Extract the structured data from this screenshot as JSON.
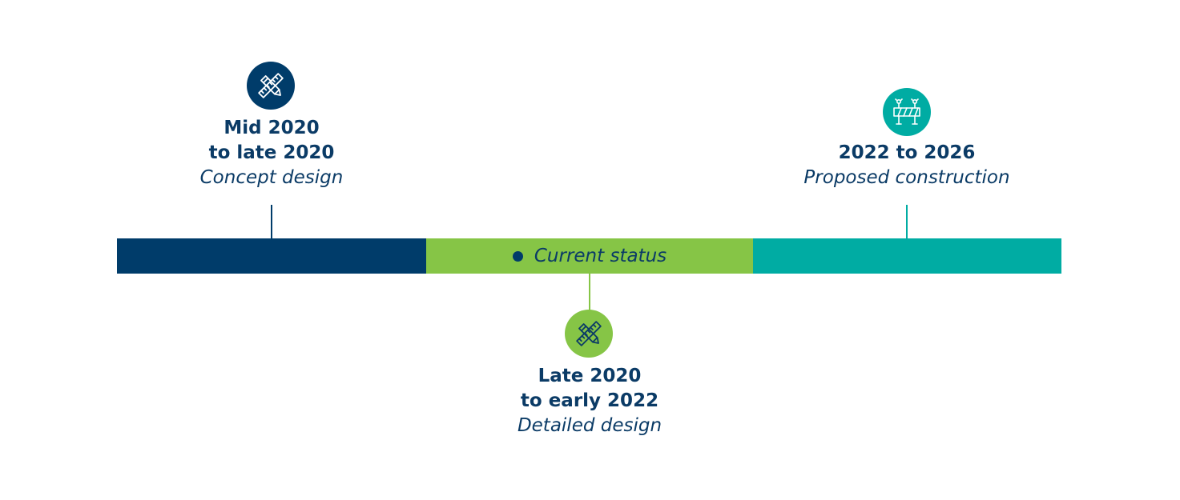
{
  "milestones": [
    {
      "date_line1": "Mid 2020",
      "date_line2": "to late 2020",
      "phase": "Concept design",
      "icon": "design-tools-icon",
      "color": "#003c6a"
    },
    {
      "date_line1": "Late 2020",
      "date_line2": "to early 2022",
      "phase": "Detailed design",
      "icon": "design-tools-icon",
      "color": "#86c546"
    },
    {
      "date_line1": "2022 to 2026",
      "date_line2": "",
      "phase": "Proposed construction",
      "icon": "road-barrier-icon",
      "color": "#00aca3"
    }
  ],
  "status": {
    "label": "Current status",
    "dot_color": "#003c6a"
  },
  "colors": {
    "text": "#0b3b66",
    "navy": "#003c6a",
    "green": "#86c546",
    "teal": "#00aca3"
  }
}
